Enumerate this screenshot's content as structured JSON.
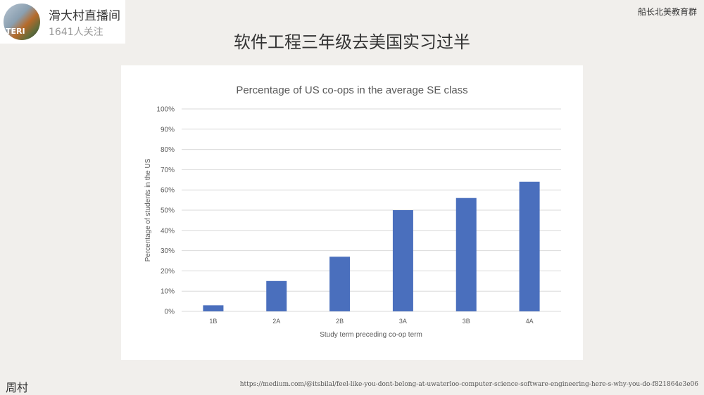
{
  "badge": {
    "name": "滑大村直播间",
    "followers": "1641人关注",
    "avatar_text": "TERI"
  },
  "corner": "船长北美教育群",
  "slide_title": "软件工程三年级去美国实习过半",
  "author": "周村",
  "source_url": "https://medium.com/@itsbilal/feel-like-you-dont-belong-at-uwaterloo-computer-science-software-engineering-here-s-why-you-do-f821864e3e06",
  "chart_data": {
    "type": "bar",
    "title": "Percentage of US co-ops in the average SE class",
    "xlabel": "Study term preceding co-op term",
    "ylabel": "Percentage of students in the US",
    "categories": [
      "1B",
      "2A",
      "2B",
      "3A",
      "3B",
      "4A"
    ],
    "values": [
      3,
      15,
      27,
      50,
      56,
      64
    ],
    "ylim": [
      0,
      100
    ],
    "yticks": [
      "0%",
      "10%",
      "20%",
      "30%",
      "40%",
      "50%",
      "60%",
      "70%",
      "80%",
      "90%",
      "100%"
    ],
    "grid": true,
    "bar_color": "#4a6fbd"
  }
}
